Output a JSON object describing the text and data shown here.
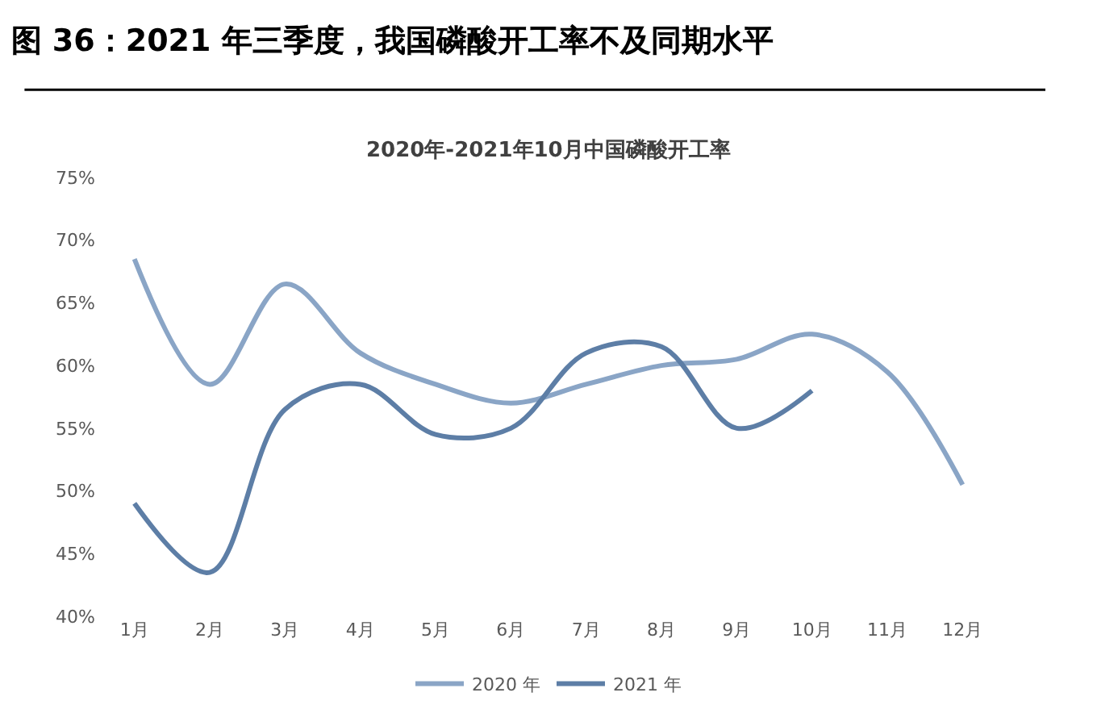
{
  "chart_data": {
    "type": "line",
    "title": "图 36：2021 年三季度，我国磷酸开工率不及同期水平",
    "subtitle": "2020年-2021年10月中国磷酸开工率",
    "categories": [
      "1月",
      "2月",
      "3月",
      "4月",
      "5月",
      "6月",
      "7月",
      "8月",
      "9月",
      "10月",
      "11月",
      "12月"
    ],
    "series": [
      {
        "name": "2020 年",
        "color": "#8aa5c6",
        "values": [
          68.5,
          58.5,
          66.5,
          61,
          58.5,
          57,
          58.5,
          60,
          60.5,
          62.5,
          59.5,
          50.5
        ]
      },
      {
        "name": "2021 年",
        "color": "#5d7ea6",
        "values": [
          49,
          43.5,
          56.5,
          58.5,
          54.5,
          55,
          61,
          61.5,
          55,
          58,
          null,
          null
        ]
      }
    ],
    "ylim": [
      40,
      75
    ],
    "yticks": [
      {
        "value": 40,
        "label": "40%"
      },
      {
        "value": 45,
        "label": "45%"
      },
      {
        "value": 50,
        "label": "50%"
      },
      {
        "value": 55,
        "label": "55%"
      },
      {
        "value": 60,
        "label": "60%"
      },
      {
        "value": 65,
        "label": "65%"
      },
      {
        "value": 70,
        "label": "70%"
      },
      {
        "value": 75,
        "label": "75%"
      }
    ],
    "legend": "bottom",
    "marker": "none",
    "line_style": "solid"
  }
}
